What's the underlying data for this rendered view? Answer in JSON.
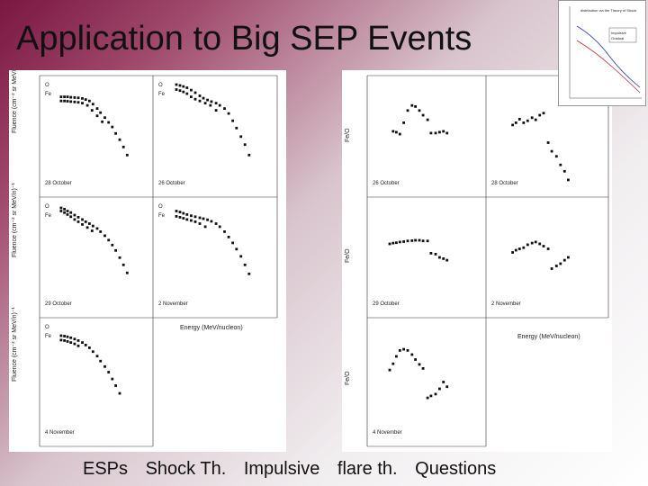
{
  "slide": {
    "title": "Application to Big SEP Events",
    "nav_links": [
      "ESPs",
      "Shock Th.",
      "Impulsive",
      "flare th.",
      "Questions"
    ]
  },
  "colors": {
    "background_dark": "#7a1742",
    "background_light": "#ffffff",
    "points": "#111111"
  },
  "figures": {
    "left": {
      "ylabel": "Fluence (cm⁻² sr MeV/n)⁻¹",
      "xlabel": "Energy (MeV/nucleon)"
    },
    "right": {
      "ylabel": "Fe/O",
      "xlabel": "Energy (MeV/nucleon)"
    }
  },
  "chart_data": [
    {
      "type": "scatter",
      "figure": "left",
      "panel": "28 October",
      "log_x": true,
      "log_y": true,
      "xlim": [
        0.01,
        1000
      ],
      "ylim": [
        1e-05,
        1000000
      ],
      "legend": [
        "O",
        "Fe"
      ],
      "series": [
        {
          "name": "O",
          "x": [
            0.07,
            0.1,
            0.14,
            0.2,
            0.3,
            0.45,
            0.7,
            1,
            1.5,
            2.2,
            3.5,
            5,
            8,
            12,
            18,
            26,
            40,
            60,
            90
          ],
          "y": [
            20000,
            20000,
            20000,
            18000,
            17000,
            16000,
            14000,
            11000,
            8000,
            4000,
            1500,
            600,
            200,
            70,
            25,
            6,
            1.5,
            0.3,
            0.05
          ]
        },
        {
          "name": "Fe",
          "x": [
            0.07,
            0.1,
            0.14,
            0.2,
            0.3,
            0.45,
            0.7,
            1.2,
            2,
            3.5,
            6
          ],
          "y": [
            8000,
            8000,
            7500,
            7000,
            6500,
            6000,
            5000,
            3000,
            1000,
            300,
            80
          ]
        }
      ]
    },
    {
      "type": "scatter",
      "figure": "left",
      "panel": "26 October",
      "log_x": true,
      "log_y": true,
      "xlim": [
        0.01,
        1000
      ],
      "ylim": [
        1e-05,
        1000000
      ],
      "legend": [
        "O",
        "Fe"
      ],
      "series": [
        {
          "name": "O",
          "x": [
            0.07,
            0.1,
            0.14,
            0.2,
            0.3,
            0.45,
            0.7,
            1,
            1.5,
            2.2,
            3.5,
            5,
            8,
            12,
            18,
            26,
            40,
            60,
            90
          ],
          "y": [
            300000,
            250000,
            200000,
            150000,
            90000,
            50000,
            25000,
            15000,
            10000,
            7000,
            5000,
            3000,
            1500,
            500,
            100,
            20,
            3,
            0.5,
            0.05
          ]
        },
        {
          "name": "Fe",
          "x": [
            0.07,
            0.1,
            0.14,
            0.2,
            0.3,
            0.45,
            0.7,
            1.2,
            2,
            3.5
          ],
          "y": [
            100000,
            80000,
            60000,
            40000,
            20000,
            12000,
            8000,
            5000,
            3000,
            1000
          ]
        }
      ]
    },
    {
      "type": "scatter",
      "figure": "left",
      "panel": "29 October",
      "log_x": true,
      "log_y": true,
      "xlim": [
        0.01,
        1000
      ],
      "ylim": [
        1e-05,
        1000000
      ],
      "legend": [
        "O",
        "Fe"
      ],
      "series": [
        {
          "name": "O",
          "x": [
            0.07,
            0.1,
            0.14,
            0.2,
            0.3,
            0.45,
            0.7,
            1,
            1.5,
            2.2,
            3.5,
            5,
            8,
            12,
            18,
            26,
            40,
            60,
            90
          ],
          "y": [
            200000,
            150000,
            100000,
            70000,
            40000,
            25000,
            15000,
            9000,
            6000,
            3500,
            2000,
            1000,
            400,
            150,
            50,
            15,
            3,
            0.6,
            0.1
          ]
        },
        {
          "name": "Fe",
          "x": [
            0.07,
            0.1,
            0.14,
            0.2,
            0.3,
            0.45,
            0.7,
            1.2,
            2
          ],
          "y": [
            100000,
            70000,
            45000,
            28000,
            15000,
            9000,
            5000,
            2500,
            1200
          ]
        }
      ]
    },
    {
      "type": "scatter",
      "figure": "left",
      "panel": "2 November",
      "log_x": true,
      "log_y": true,
      "xlim": [
        0.01,
        1000
      ],
      "ylim": [
        1e-05,
        1000000
      ],
      "legend": [
        "O",
        "Fe"
      ],
      "series": [
        {
          "name": "O",
          "x": [
            0.07,
            0.1,
            0.14,
            0.2,
            0.3,
            0.45,
            0.7,
            1,
            1.5,
            2.2,
            3.5,
            5,
            8,
            12,
            18,
            26,
            40,
            60,
            90
          ],
          "y": [
            100000,
            80000,
            60000,
            45000,
            35000,
            28000,
            22000,
            18000,
            14000,
            10000,
            6000,
            3000,
            1000,
            300,
            80,
            20,
            4,
            0.6,
            0.08
          ]
        },
        {
          "name": "Fe",
          "x": [
            0.07,
            0.1,
            0.14,
            0.2,
            0.3,
            0.45,
            0.7,
            1.2
          ],
          "y": [
            30000,
            25000,
            20000,
            15000,
            12000,
            9000,
            6000,
            3000
          ]
        }
      ]
    },
    {
      "type": "scatter",
      "figure": "left",
      "panel": "4 November",
      "log_x": true,
      "log_y": true,
      "xlim": [
        0.01,
        1000
      ],
      "ylim": [
        1e-05,
        1000000
      ],
      "legend": [
        "O",
        "Fe"
      ],
      "series": [
        {
          "name": "O",
          "x": [
            0.07,
            0.1,
            0.14,
            0.2,
            0.3,
            0.45,
            0.7,
            1,
            1.5,
            2.2,
            3.5,
            5,
            8,
            12,
            18,
            26,
            40
          ],
          "y": [
            50000,
            45000,
            40000,
            32000,
            25000,
            18000,
            12000,
            7000,
            4000,
            1800,
            700,
            250,
            80,
            25,
            6,
            1.5,
            0.3
          ]
        },
        {
          "name": "Fe",
          "x": [
            0.07,
            0.1,
            0.14,
            0.2,
            0.3,
            0.45
          ],
          "y": [
            20000,
            18000,
            15000,
            12000,
            9000,
            6000
          ]
        }
      ]
    },
    {
      "type": "scatter",
      "figure": "right",
      "panel": "26 October",
      "log_x": true,
      "log_y": true,
      "xlim": [
        0.01,
        1000
      ],
      "ylim": [
        0.001,
        10
      ],
      "series": [
        {
          "x": [
            0.1,
            0.14,
            0.2,
            0.3,
            0.45,
            0.7,
            1,
            1.5,
            2.2,
            3.5,
            5,
            8,
            12,
            18,
            26
          ],
          "y": [
            0.15,
            0.14,
            0.12,
            0.3,
            0.8,
            1.2,
            1.1,
            0.8,
            0.55,
            0.38,
            0.13,
            0.13,
            0.14,
            0.15,
            0.13
          ]
        }
      ]
    },
    {
      "type": "scatter",
      "figure": "right",
      "panel": "28 October",
      "log_x": true,
      "log_y": true,
      "xlim": [
        0.01,
        1000
      ],
      "ylim": [
        0.001,
        10
      ],
      "series": [
        {
          "x": [
            0.1,
            0.14,
            0.2,
            0.3,
            0.45,
            0.7,
            1,
            1.5,
            2.2,
            3.5,
            5,
            8,
            12,
            18,
            26
          ],
          "y": [
            0.25,
            0.3,
            0.4,
            0.3,
            0.35,
            0.45,
            0.38,
            0.55,
            0.65,
            0.06,
            0.03,
            0.02,
            0.01,
            0.006,
            0.003
          ]
        }
      ]
    },
    {
      "type": "scatter",
      "figure": "right",
      "panel": "29 October",
      "log_x": true,
      "log_y": true,
      "xlim": [
        0.01,
        1000
      ],
      "ylim": [
        0.001,
        10
      ],
      "series": [
        {
          "x": [
            0.07,
            0.1,
            0.14,
            0.2,
            0.3,
            0.45,
            0.7,
            1,
            1.5,
            2.2,
            3.5,
            5,
            8,
            12,
            18,
            26
          ],
          "y": [
            0.3,
            0.32,
            0.33,
            0.35,
            0.36,
            0.38,
            0.39,
            0.4,
            0.4,
            0.38,
            0.38,
            0.14,
            0.13,
            0.1,
            0.09,
            0.08
          ]
        }
      ]
    },
    {
      "type": "scatter",
      "figure": "right",
      "panel": "2 November",
      "log_x": true,
      "log_y": true,
      "xlim": [
        0.01,
        1000
      ],
      "ylim": [
        0.001,
        10
      ],
      "series": [
        {
          "x": [
            0.1,
            0.14,
            0.2,
            0.3,
            0.45,
            0.7,
            1,
            1.5,
            2.2,
            3.5,
            5,
            8,
            12,
            18,
            26
          ],
          "y": [
            0.15,
            0.18,
            0.2,
            0.22,
            0.28,
            0.32,
            0.35,
            0.3,
            0.25,
            0.2,
            0.04,
            0.05,
            0.06,
            0.08,
            0.1
          ]
        }
      ]
    },
    {
      "type": "scatter",
      "figure": "right",
      "panel": "4 November",
      "log_x": true,
      "log_y": true,
      "xlim": [
        0.01,
        1000
      ],
      "ylim": [
        0.001,
        10
      ],
      "series": [
        {
          "x": [
            0.07,
            0.1,
            0.14,
            0.2,
            0.3,
            0.45,
            0.7,
            1,
            1.5,
            2.2,
            3.5,
            5,
            8,
            12,
            18,
            26
          ],
          "y": [
            0.25,
            0.4,
            0.7,
            1.1,
            1.2,
            1.1,
            0.8,
            0.55,
            0.38,
            0.28,
            0.03,
            0.035,
            0.04,
            0.06,
            0.1,
            0.07
          ]
        }
      ]
    }
  ],
  "thumbnail": {
    "title": "distribution via the Theory of Shock",
    "labels": [
      "Impulsive",
      "Gradual"
    ]
  }
}
